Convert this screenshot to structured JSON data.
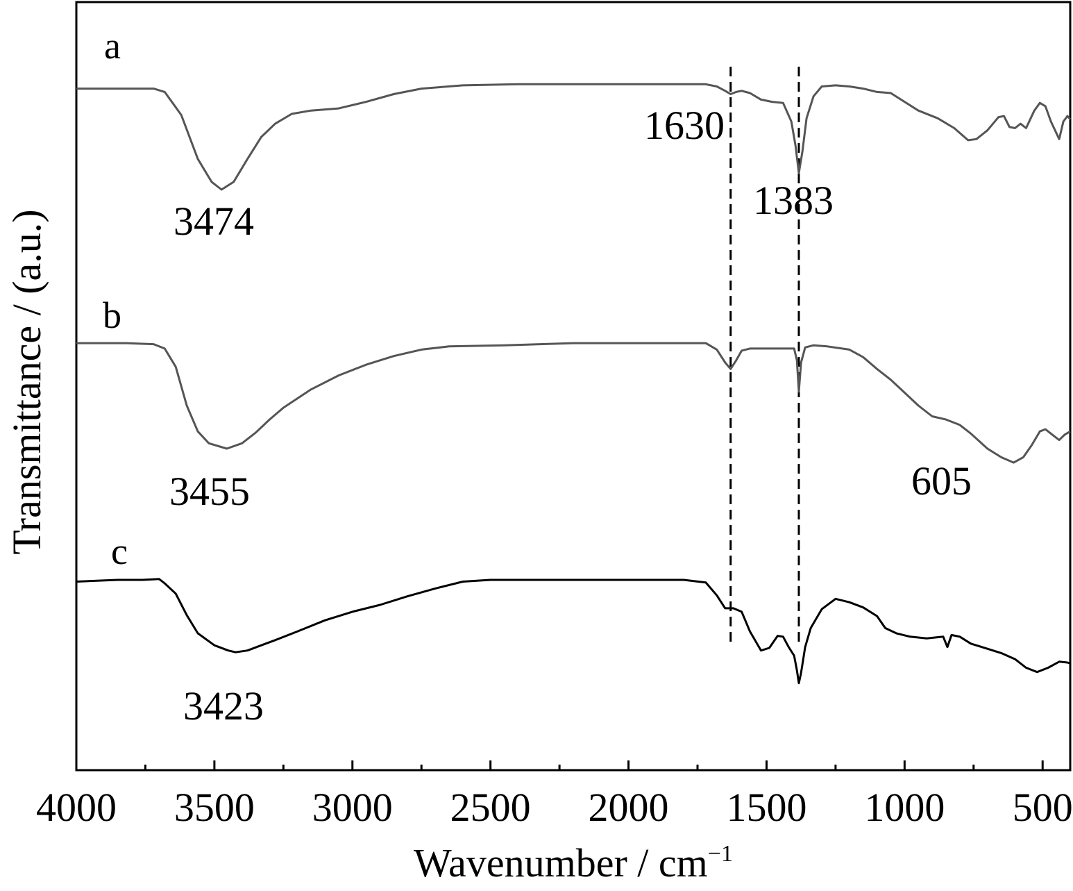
{
  "chart_data": {
    "type": "line",
    "title": "",
    "xlabel": "Wavenumber / cm",
    "xlabel_superscript": "−1",
    "ylabel": "Transmittance / (a.u.)",
    "xlim": [
      4000,
      400
    ],
    "x_reversed": true,
    "y_ticks_shown": false,
    "grid": false,
    "legend": "none",
    "x_ticks": [
      "4000",
      "3500",
      "3000",
      "2500",
      "2000",
      "1500",
      "1000",
      "500"
    ],
    "series": [
      {
        "name": "a",
        "color": "#555555",
        "points": [
          [
            4000,
            0.08
          ],
          [
            3820,
            0.08
          ],
          [
            3720,
            0.08
          ],
          [
            3680,
            0.11
          ],
          [
            3620,
            0.32
          ],
          [
            3560,
            0.72
          ],
          [
            3510,
            0.93
          ],
          [
            3474,
            1.0
          ],
          [
            3430,
            0.93
          ],
          [
            3380,
            0.72
          ],
          [
            3330,
            0.52
          ],
          [
            3280,
            0.4
          ],
          [
            3220,
            0.31
          ],
          [
            3150,
            0.28
          ],
          [
            3050,
            0.26
          ],
          [
            2950,
            0.2
          ],
          [
            2850,
            0.13
          ],
          [
            2750,
            0.08
          ],
          [
            2600,
            0.05
          ],
          [
            2400,
            0.04
          ],
          [
            2200,
            0.04
          ],
          [
            1900,
            0.04
          ],
          [
            1720,
            0.04
          ],
          [
            1680,
            0.06
          ],
          [
            1650,
            0.1
          ],
          [
            1630,
            0.13
          ],
          [
            1610,
            0.11
          ],
          [
            1590,
            0.1
          ],
          [
            1560,
            0.12
          ],
          [
            1520,
            0.18
          ],
          [
            1480,
            0.2
          ],
          [
            1440,
            0.21
          ],
          [
            1410,
            0.38
          ],
          [
            1395,
            0.6
          ],
          [
            1383,
            0.85
          ],
          [
            1370,
            0.65
          ],
          [
            1355,
            0.35
          ],
          [
            1330,
            0.15
          ],
          [
            1300,
            0.06
          ],
          [
            1250,
            0.05
          ],
          [
            1200,
            0.06
          ],
          [
            1150,
            0.08
          ],
          [
            1100,
            0.11
          ],
          [
            1050,
            0.12
          ],
          [
            1000,
            0.2
          ],
          [
            950,
            0.28
          ],
          [
            880,
            0.35
          ],
          [
            820,
            0.44
          ],
          [
            770,
            0.55
          ],
          [
            740,
            0.54
          ],
          [
            700,
            0.46
          ],
          [
            660,
            0.34
          ],
          [
            640,
            0.33
          ],
          [
            620,
            0.43
          ],
          [
            600,
            0.44
          ],
          [
            580,
            0.4
          ],
          [
            560,
            0.44
          ],
          [
            530,
            0.28
          ],
          [
            510,
            0.21
          ],
          [
            490,
            0.24
          ],
          [
            470,
            0.38
          ],
          [
            440,
            0.54
          ],
          [
            425,
            0.38
          ],
          [
            410,
            0.33
          ],
          [
            400,
            0.36
          ]
        ]
      },
      {
        "name": "b",
        "color": "#555555",
        "points": [
          [
            4000,
            0.02
          ],
          [
            3820,
            0.02
          ],
          [
            3720,
            0.03
          ],
          [
            3680,
            0.07
          ],
          [
            3640,
            0.24
          ],
          [
            3600,
            0.6
          ],
          [
            3560,
            0.84
          ],
          [
            3520,
            0.95
          ],
          [
            3455,
            1.0
          ],
          [
            3400,
            0.95
          ],
          [
            3350,
            0.85
          ],
          [
            3300,
            0.73
          ],
          [
            3250,
            0.62
          ],
          [
            3150,
            0.45
          ],
          [
            3050,
            0.32
          ],
          [
            2950,
            0.22
          ],
          [
            2850,
            0.14
          ],
          [
            2750,
            0.08
          ],
          [
            2650,
            0.05
          ],
          [
            2450,
            0.04
          ],
          [
            2200,
            0.02
          ],
          [
            1900,
            0.02
          ],
          [
            1720,
            0.02
          ],
          [
            1680,
            0.08
          ],
          [
            1650,
            0.2
          ],
          [
            1630,
            0.26
          ],
          [
            1610,
            0.18
          ],
          [
            1590,
            0.09
          ],
          [
            1560,
            0.07
          ],
          [
            1450,
            0.07
          ],
          [
            1400,
            0.07
          ],
          [
            1390,
            0.18
          ],
          [
            1383,
            0.47
          ],
          [
            1375,
            0.2
          ],
          [
            1360,
            0.06
          ],
          [
            1330,
            0.04
          ],
          [
            1280,
            0.05
          ],
          [
            1200,
            0.08
          ],
          [
            1150,
            0.15
          ],
          [
            1100,
            0.26
          ],
          [
            1050,
            0.36
          ],
          [
            1000,
            0.48
          ],
          [
            950,
            0.6
          ],
          [
            900,
            0.7
          ],
          [
            850,
            0.73
          ],
          [
            800,
            0.78
          ],
          [
            760,
            0.86
          ],
          [
            700,
            1.0
          ],
          [
            650,
            1.08
          ],
          [
            605,
            1.13
          ],
          [
            570,
            1.08
          ],
          [
            540,
            0.97
          ],
          [
            510,
            0.84
          ],
          [
            490,
            0.82
          ],
          [
            460,
            0.88
          ],
          [
            440,
            0.92
          ],
          [
            420,
            0.87
          ],
          [
            400,
            0.84
          ]
        ]
      },
      {
        "name": "c",
        "color": "#000000",
        "points": [
          [
            4000,
            0.02
          ],
          [
            3850,
            0.0
          ],
          [
            3760,
            0.0
          ],
          [
            3700,
            -0.01
          ],
          [
            3680,
            0.04
          ],
          [
            3640,
            0.16
          ],
          [
            3600,
            0.41
          ],
          [
            3560,
            0.62
          ],
          [
            3500,
            0.76
          ],
          [
            3450,
            0.82
          ],
          [
            3423,
            0.84
          ],
          [
            3380,
            0.82
          ],
          [
            3330,
            0.76
          ],
          [
            3280,
            0.7
          ],
          [
            3200,
            0.6
          ],
          [
            3100,
            0.47
          ],
          [
            3000,
            0.37
          ],
          [
            2900,
            0.29
          ],
          [
            2800,
            0.19
          ],
          [
            2700,
            0.1
          ],
          [
            2600,
            0.02
          ],
          [
            2500,
            0.0
          ],
          [
            2300,
            0.0
          ],
          [
            2000,
            0.0
          ],
          [
            1800,
            0.0
          ],
          [
            1720,
            0.03
          ],
          [
            1680,
            0.18
          ],
          [
            1650,
            0.33
          ],
          [
            1620,
            0.33
          ],
          [
            1590,
            0.37
          ],
          [
            1560,
            0.6
          ],
          [
            1520,
            0.82
          ],
          [
            1490,
            0.79
          ],
          [
            1460,
            0.65
          ],
          [
            1440,
            0.66
          ],
          [
            1420,
            0.78
          ],
          [
            1400,
            0.88
          ],
          [
            1390,
            1.05
          ],
          [
            1383,
            1.2
          ],
          [
            1375,
            1.08
          ],
          [
            1360,
            0.78
          ],
          [
            1340,
            0.56
          ],
          [
            1300,
            0.34
          ],
          [
            1250,
            0.22
          ],
          [
            1200,
            0.26
          ],
          [
            1150,
            0.32
          ],
          [
            1100,
            0.42
          ],
          [
            1070,
            0.56
          ],
          [
            1030,
            0.62
          ],
          [
            980,
            0.66
          ],
          [
            920,
            0.68
          ],
          [
            860,
            0.66
          ],
          [
            845,
            0.78
          ],
          [
            830,
            0.64
          ],
          [
            800,
            0.66
          ],
          [
            760,
            0.74
          ],
          [
            700,
            0.8
          ],
          [
            650,
            0.85
          ],
          [
            600,
            0.92
          ],
          [
            560,
            1.02
          ],
          [
            520,
            1.07
          ],
          [
            480,
            1.02
          ],
          [
            440,
            0.95
          ],
          [
            410,
            0.96
          ],
          [
            400,
            0.97
          ]
        ]
      }
    ],
    "reference_lines": [
      1630,
      1383
    ],
    "annotations": [
      "3474",
      "1630",
      "1383",
      "3455",
      "605",
      "3423"
    ]
  }
}
